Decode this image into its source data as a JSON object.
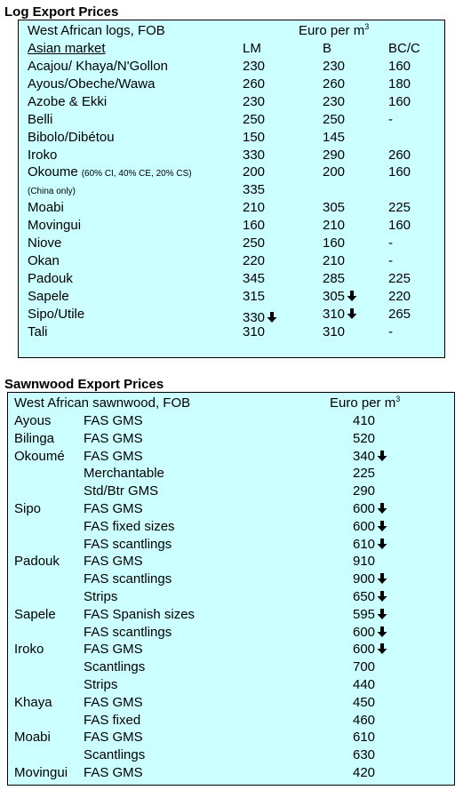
{
  "log": {
    "title": "Log Export Prices",
    "panel_title": "West African logs, FOB",
    "unit_label": "Euro per m",
    "unit_sup": "3",
    "market_label": "Asian market",
    "columns": [
      "LM",
      "B",
      "BC/C"
    ],
    "rows": [
      {
        "name": "Acajou/ Khaya/N'Gollon",
        "lm": "230",
        "b": "230",
        "bc": "160"
      },
      {
        "name": "Ayous/Obeche/Wawa",
        "lm": "260",
        "b": "260",
        "bc": "180"
      },
      {
        "name": "Azobe & Ekki",
        "lm": "230",
        "b": "230",
        "bc": "160"
      },
      {
        "name": "Belli",
        "lm": "250",
        "b": "250",
        "bc": "-"
      },
      {
        "name": "Bibolo/Dibétou",
        "lm": "150",
        "b": "145",
        "bc": ""
      },
      {
        "name": "Iroko",
        "lm": "330",
        "b": "290",
        "bc": "260"
      },
      {
        "name": "Okoume",
        "note": "(60% CI, 40% CE, 20% CS)",
        "lm": "200",
        "b": "200",
        "bc": "160"
      },
      {
        "name": "",
        "note": "(China only)",
        "lm": "335",
        "b": "",
        "bc": ""
      },
      {
        "name": "Moabi",
        "lm": "210",
        "b": "305",
        "bc": "225"
      },
      {
        "name": "Movingui",
        "lm": "160",
        "b": "210",
        "bc": "160"
      },
      {
        "name": "Niove",
        "lm": "250",
        "b": "160",
        "bc": "-"
      },
      {
        "name": "Okan",
        "lm": "220",
        "b": "210",
        "bc": "-"
      },
      {
        "name": "Padouk",
        "lm": "345",
        "b": "285",
        "bc": "225"
      },
      {
        "name": "Sapele",
        "lm": "315",
        "b": "305",
        "b_arrow": true,
        "bc": "220"
      },
      {
        "name": "Sipo/Utile",
        "lm": "330",
        "lm_arrow": true,
        "b": "310",
        "b_arrow": true,
        "bc": "265"
      },
      {
        "name": "Tali",
        "lm": "310",
        "b": "310",
        "bc": "-"
      }
    ]
  },
  "sawn": {
    "title": "Sawnwood Export Prices",
    "panel_title": "West African sawnwood, FOB",
    "unit_label": "Euro per m",
    "unit_sup": "3",
    "rows": [
      {
        "species": "Ayous",
        "grade": "FAS GMS",
        "price": "410"
      },
      {
        "species": "Bilinga",
        "grade": "FAS GMS",
        "price": "520"
      },
      {
        "species": "Okoumé",
        "grade": "FAS GMS",
        "price": "340",
        "arrow": true
      },
      {
        "species": "",
        "grade": "Merchantable",
        "price": "225"
      },
      {
        "species": "",
        "grade": "Std/Btr GMS",
        "price": "290"
      },
      {
        "species": "Sipo",
        "grade": "FAS GMS",
        "price": "600",
        "arrow": true
      },
      {
        "species": "",
        "grade": "FAS fixed sizes",
        "price": "600",
        "arrow": true
      },
      {
        "species": "",
        "grade": "FAS scantlings",
        "price": "610",
        "arrow": true
      },
      {
        "species": "Padouk",
        "grade": "FAS GMS",
        "price": "910"
      },
      {
        "species": "",
        "grade": "FAS scantlings",
        "price": "900",
        "arrow": true
      },
      {
        "species": "",
        "grade": "Strips",
        "price": "650",
        "arrow": true
      },
      {
        "species": "Sapele",
        "grade": "FAS Spanish sizes",
        "price": "595",
        "arrow": true
      },
      {
        "species": "",
        "grade": "FAS scantlings",
        "price": "600",
        "arrow": true
      },
      {
        "species": "Iroko",
        "grade": "FAS GMS",
        "price": "600",
        "arrow": true
      },
      {
        "species": "",
        "grade": "Scantlings",
        "price": "700"
      },
      {
        "species": "",
        "grade": "Strips",
        "price": "440"
      },
      {
        "species": "Khaya",
        "grade": "FAS GMS",
        "price": "450"
      },
      {
        "species": "",
        "grade": "FAS fixed",
        "price": "460"
      },
      {
        "species": "Moabi",
        "grade": "FAS GMS",
        "price": "610"
      },
      {
        "species": "",
        "grade": "Scantlings",
        "price": "630"
      },
      {
        "species": "Movingui",
        "grade": "FAS GMS",
        "price": "420"
      }
    ]
  }
}
